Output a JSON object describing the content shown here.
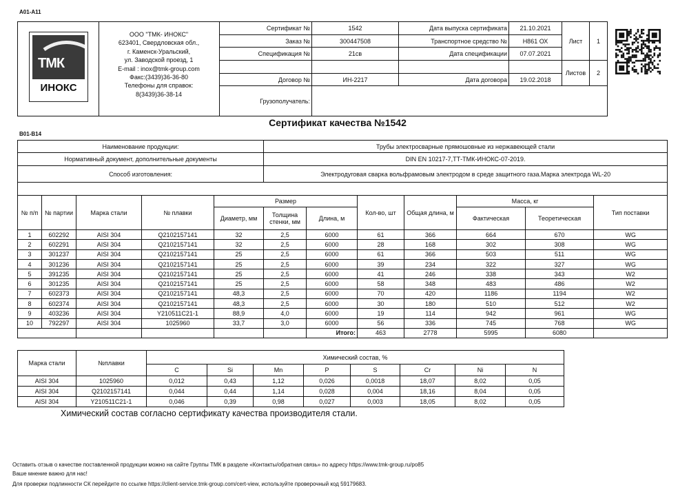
{
  "section_labels": {
    "top": "A01-A11",
    "main": "B01-B14"
  },
  "logo": {
    "brand": "ТМК",
    "name": "ИНОКС"
  },
  "company": {
    "lines": [
      "ООО \"ТМК- ИНОКС\"",
      "623401, Свердловская обл.,",
      "г. Каменск-Уральский,",
      "ул. Заводской проезд, 1",
      "E-mail : inox@tmk-group.com",
      "Факс:(3439)36-36-80",
      "Телефоны для справок:",
      "8(3439)36-38-14"
    ]
  },
  "header": {
    "certificate_label": "Сертификат №",
    "certificate": "1542",
    "order_label": "Заказ №",
    "order": "300447508",
    "spec_label": "Спецификация №",
    "spec": "21св",
    "contract_label": "Договор №",
    "contract": "ИН-2217",
    "consignee_label": "Грузополучатель:",
    "consignee": "",
    "issue_date_label": "Дата выпуска сертификата",
    "issue_date": "21.10.2021",
    "vehicle_label": "Транспортное средство №",
    "vehicle": "Н861 ОХ",
    "spec_date_label": "Дата спецификации",
    "spec_date": "07.07.2021",
    "contract_date_label": "Дата договора",
    "contract_date": "19.02.2018",
    "sheet_label": "Лист",
    "sheet": "1",
    "sheets_label": "Листов",
    "sheets": "2"
  },
  "title": "Сертификат качества №1542",
  "product": {
    "name_label": "Наименование продукции:",
    "name": "Трубы электросварные прямошовные из нержавеющей стали",
    "docs_label": "Нормативный документ, дополнительные документы",
    "docs": "DIN EN 10217-7,ТТ-ТМК-ИНОКС-07-2019.",
    "method_label": "Способ изготовления:",
    "method": "Электродуговая сварка вольфрамовым электродом в среде защитного газа.Марка электрода WL-20"
  },
  "main_table": {
    "headers": {
      "num": "№ п/п",
      "batch": "№ партии",
      "grade": "Марка стали",
      "heat": "№ плавки",
      "size": "Размер",
      "diameter": "Диаметр, мм",
      "wall": "Толщина стенки, мм",
      "length": "Длина, м",
      "qty": "Кол-во, шт",
      "total_length": "Общая длина, м",
      "mass": "Масса, кг",
      "actual": "Фактическая",
      "theoretical": "Теоретическая",
      "delivery": "Тип поставки"
    },
    "rows": [
      [
        "1",
        "602292",
        "AISI 304",
        "Q2102157141",
        "32",
        "2,5",
        "6000",
        "61",
        "366",
        "664",
        "670",
        "WG"
      ],
      [
        "2",
        "602291",
        "AISI 304",
        "Q2102157141",
        "32",
        "2,5",
        "6000",
        "28",
        "168",
        "302",
        "308",
        "WG"
      ],
      [
        "3",
        "301237",
        "AISI 304",
        "Q2102157141",
        "25",
        "2,5",
        "6000",
        "61",
        "366",
        "503",
        "511",
        "WG"
      ],
      [
        "4",
        "301236",
        "AISI 304",
        "Q2102157141",
        "25",
        "2,5",
        "6000",
        "39",
        "234",
        "322",
        "327",
        "WG"
      ],
      [
        "5",
        "391235",
        "AISI 304",
        "Q2102157141",
        "25",
        "2,5",
        "6000",
        "41",
        "246",
        "338",
        "343",
        "W2"
      ],
      [
        "6",
        "301235",
        "AISI 304",
        "Q2102157141",
        "25",
        "2,5",
        "6000",
        "58",
        "348",
        "483",
        "486",
        "W2"
      ],
      [
        "7",
        "602373",
        "AISI 304",
        "Q2102157141",
        "48,3",
        "2,5",
        "6000",
        "70",
        "420",
        "1186",
        "1194",
        "W2"
      ],
      [
        "8",
        "602374",
        "AISI 304",
        "Q2102157141",
        "48,3",
        "2,5",
        "6000",
        "30",
        "180",
        "510",
        "512",
        "W2"
      ],
      [
        "9",
        "403236",
        "AISI 304",
        "Y210511C21-1",
        "88,9",
        "4,0",
        "6000",
        "19",
        "114",
        "942",
        "961",
        "WG"
      ],
      [
        "10",
        "792297",
        "AISI 304",
        "1025960",
        "33,7",
        "3,0",
        "6000",
        "56",
        "336",
        "745",
        "768",
        "WG"
      ]
    ],
    "total_label": "Итого:",
    "totals": {
      "qty": "463",
      "total_length": "2778",
      "actual": "5995",
      "theoretical": "6080"
    }
  },
  "chem_table": {
    "grade_label": "Марка стали",
    "heat_label": "№плавки",
    "title": "Химический состав, %",
    "elements": [
      "C",
      "Si",
      "Mn",
      "P",
      "S",
      "Cr",
      "Ni",
      "N"
    ],
    "rows": [
      [
        "AISI 304",
        "1025960",
        "0,012",
        "0,43",
        "1,12",
        "0,026",
        "0,0018",
        "18,07",
        "8,02",
        "0,05"
      ],
      [
        "AISI 304",
        "Q2102157141",
        "0,044",
        "0,44",
        "1,14",
        "0,028",
        "0,004",
        "18,16",
        "8,04",
        "0,05"
      ],
      [
        "AISI 304",
        "Y210511C21-1",
        "0,046",
        "0,39",
        "0,98",
        "0,027",
        "0,003",
        "18,05",
        "8,02",
        "0,05"
      ]
    ]
  },
  "chem_note": "Химический состав согласно сертификату качества производителя стали.",
  "footer": {
    "line1": "Оставить отзыв о качестве поставленной продукции можно на сайте Группы ТМК в разделе «Контакты/обратная связь» по адресу https://www.tmk-group.ru/po85",
    "line2": "Ваше мнение важно для нас!",
    "line3": "Для проверки подлинности СК перейдите по ссылке https://client-service.tmk-group.com/cert-view, используйте проверочный код  59179683."
  }
}
